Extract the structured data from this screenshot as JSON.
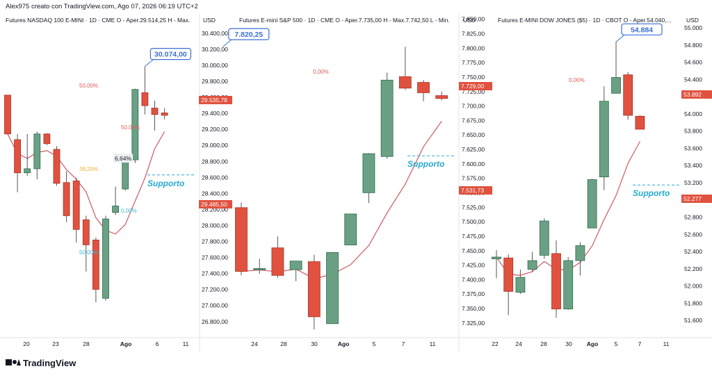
{
  "header": {
    "line": "Alex975 creato con TradingView.com, Ago 07, 2026 06:19 UTC+2",
    "brand": "TradingView"
  },
  "colors": {
    "up": "#6aa184",
    "up_stroke": "#2f6b4c",
    "down": "#e0523f",
    "down_stroke": "#a8332a",
    "grid": "#d0d3da",
    "axis_text": "#131722",
    "blue_label": "#3b6fd6",
    "support": "#28a9cf",
    "fib_red": "#e05a5a",
    "fib_orange": "#f0b030",
    "fib_cyan": "#38b8d6",
    "ma_red": "#c0303a"
  },
  "chart_data": [
    {
      "type": "candlestick",
      "title": "Futures NASDAQ 100 E-MINI · 1D · CME  O - Aper.29.514,25  H - Max.",
      "currency": "USD",
      "y_ticks": [
        "30.400,00",
        "30.200,00",
        "30.000,00",
        "29.800,00",
        "29.600,00",
        "29.400,00",
        "29.200,00",
        "29.000,00",
        "28.800,00",
        "28.600,00",
        "28.400,00",
        "28.200,00",
        "28.000,00",
        "27.800,00",
        "27.600,00",
        "27.400,00",
        "27.200,00",
        "27.000,00",
        "26.800,00"
      ],
      "ylim": [
        26740,
        30500
      ],
      "x_ticks": [
        "20",
        "23",
        "28",
        "Ago",
        "6",
        "11"
      ],
      "candles": [
        {
          "o": 29720,
          "h": 29720,
          "l": 29240,
          "c": 29240
        },
        {
          "o": 29170,
          "h": 29240,
          "l": 28520,
          "c": 28760
        },
        {
          "o": 28760,
          "h": 29240,
          "l": 28720,
          "c": 28810
        },
        {
          "o": 28810,
          "h": 29270,
          "l": 28680,
          "c": 29240
        },
        {
          "o": 29240,
          "h": 29250,
          "l": 29100,
          "c": 29120
        },
        {
          "o": 29050,
          "h": 29090,
          "l": 28600,
          "c": 28630
        },
        {
          "o": 28640,
          "h": 28780,
          "l": 28150,
          "c": 28230
        },
        {
          "o": 28660,
          "h": 28700,
          "l": 27900,
          "c": 28060
        },
        {
          "o": 28180,
          "h": 28230,
          "l": 27540,
          "c": 27870
        },
        {
          "o": 27930,
          "h": 27960,
          "l": 27160,
          "c": 27320
        },
        {
          "o": 27210,
          "h": 28230,
          "l": 27180,
          "c": 28190
        },
        {
          "o": 28270,
          "h": 28590,
          "l": 28240,
          "c": 28350
        },
        {
          "o": 28560,
          "h": 28990,
          "l": 28540,
          "c": 28940
        },
        {
          "o": 28920,
          "h": 29800,
          "l": 28880,
          "c": 29790
        },
        {
          "o": 29750,
          "h": 30074,
          "l": 29480,
          "c": 29590
        },
        {
          "o": 29560,
          "h": 29650,
          "l": 29280,
          "c": 29480
        },
        {
          "o": 29500,
          "h": 29560,
          "l": 29420,
          "c": 29470
        }
      ],
      "callout": "30.074,00",
      "callout_value": 30074,
      "percent_label": "6,64%",
      "support_label": "Supporto",
      "price_tags": [
        "29.535,78",
        "29.485,50"
      ],
      "fib_labels": [
        "50,00%",
        "50,00%",
        "38,20%",
        "0,00%",
        "50,00%"
      ]
    },
    {
      "type": "candlestick",
      "title": "Futures E-mini S&P 500 · 1D · CME  O - Aper.7.735,00  H - Max.7.742,50  L - Min.",
      "currency": "USD",
      "y_ticks": [
        "7.850,00",
        "7.825,00",
        "7.800,00",
        "7.775,00",
        "7.750,00",
        "7.725,00",
        "7.700,00",
        "7.675,00",
        "7.650,00",
        "7.625,00",
        "7.600,00",
        "7.575,00",
        "7.550,00",
        "7.525,00",
        "7.500,00",
        "7.475,00",
        "7.450,00",
        "7.425,00",
        "7.400,00",
        "7.375,00",
        "7.350,00",
        "7.325,00"
      ],
      "ylim": [
        7316,
        7870
      ],
      "x_ticks": [
        "24",
        "28",
        "30",
        "Ago",
        "5",
        "7",
        "11"
      ],
      "candles": [
        {
          "o": 7540,
          "h": 7549,
          "l": 7422,
          "c": 7429
        },
        {
          "o": 7432,
          "h": 7451,
          "l": 7425,
          "c": 7434
        },
        {
          "o": 7470,
          "h": 7490,
          "l": 7418,
          "c": 7422
        },
        {
          "o": 7432,
          "h": 7445,
          "l": 7412,
          "c": 7447
        },
        {
          "o": 7446,
          "h": 7458,
          "l": 7328,
          "c": 7350
        },
        {
          "o": 7338,
          "h": 7462,
          "l": 7338,
          "c": 7462
        },
        {
          "o": 7475,
          "h": 7529,
          "l": 7475,
          "c": 7529
        },
        {
          "o": 7566,
          "h": 7635,
          "l": 7548,
          "c": 7634
        },
        {
          "o": 7629,
          "h": 7775,
          "l": 7625,
          "c": 7762
        },
        {
          "o": 7768,
          "h": 7820,
          "l": 7745,
          "c": 7748
        },
        {
          "o": 7758,
          "h": 7762,
          "l": 7725,
          "c": 7740
        },
        {
          "o": 7735,
          "h": 7742,
          "l": 7727,
          "c": 7730
        }
      ],
      "callout": "7.820,25",
      "callout_value": 7820.25,
      "support_label": "Supporto",
      "price_tags": [
        "7.729,00",
        "7.531,73"
      ],
      "fib_labels": [
        "0,00%"
      ]
    },
    {
      "type": "candlestick",
      "title": "Futures E-MINI DOW JONES ($5) · 1D · CBOT  O - Aper.54.040,...",
      "currency": "USD",
      "y_ticks": [
        "55.000",
        "54.800",
        "54.600",
        "54.400",
        "54.200",
        "54.000",
        "53.800",
        "53.600",
        "53.400",
        "53.200",
        "53.000",
        "52.800",
        "52.600",
        "52.400",
        "52.200",
        "52.000",
        "51.800",
        "51.600"
      ],
      "ylim": [
        51540,
        55060
      ],
      "x_ticks": [
        "22",
        "24",
        "28",
        "30",
        "Ago",
        "5",
        "7",
        "11"
      ],
      "candles": [
        {
          "o": 52420,
          "h": 52520,
          "l": 52200,
          "c": 52440
        },
        {
          "o": 52430,
          "h": 52470,
          "l": 51780,
          "c": 52050
        },
        {
          "o": 52040,
          "h": 52300,
          "l": 52020,
          "c": 52210
        },
        {
          "o": 52300,
          "h": 52500,
          "l": 52270,
          "c": 52400
        },
        {
          "o": 52460,
          "h": 52880,
          "l": 52420,
          "c": 52850
        },
        {
          "o": 52480,
          "h": 52630,
          "l": 51750,
          "c": 51850
        },
        {
          "o": 51850,
          "h": 52440,
          "l": 51840,
          "c": 52400
        },
        {
          "o": 52400,
          "h": 52610,
          "l": 52230,
          "c": 52570
        },
        {
          "o": 52770,
          "h": 53330,
          "l": 52770,
          "c": 53320
        },
        {
          "o": 53350,
          "h": 54380,
          "l": 53200,
          "c": 54210
        },
        {
          "o": 54300,
          "h": 54884,
          "l": 54300,
          "c": 54480
        },
        {
          "o": 54510,
          "h": 54540,
          "l": 54000,
          "c": 54050
        },
        {
          "o": 54040,
          "h": 54050,
          "l": 53890,
          "c": 53892
        }
      ],
      "callout": "54.884",
      "callout_value": 54884,
      "support_label": "Supporto",
      "price_tags": [
        "53.892",
        "52.277"
      ],
      "fib_labels": [
        "0,00%"
      ]
    }
  ]
}
